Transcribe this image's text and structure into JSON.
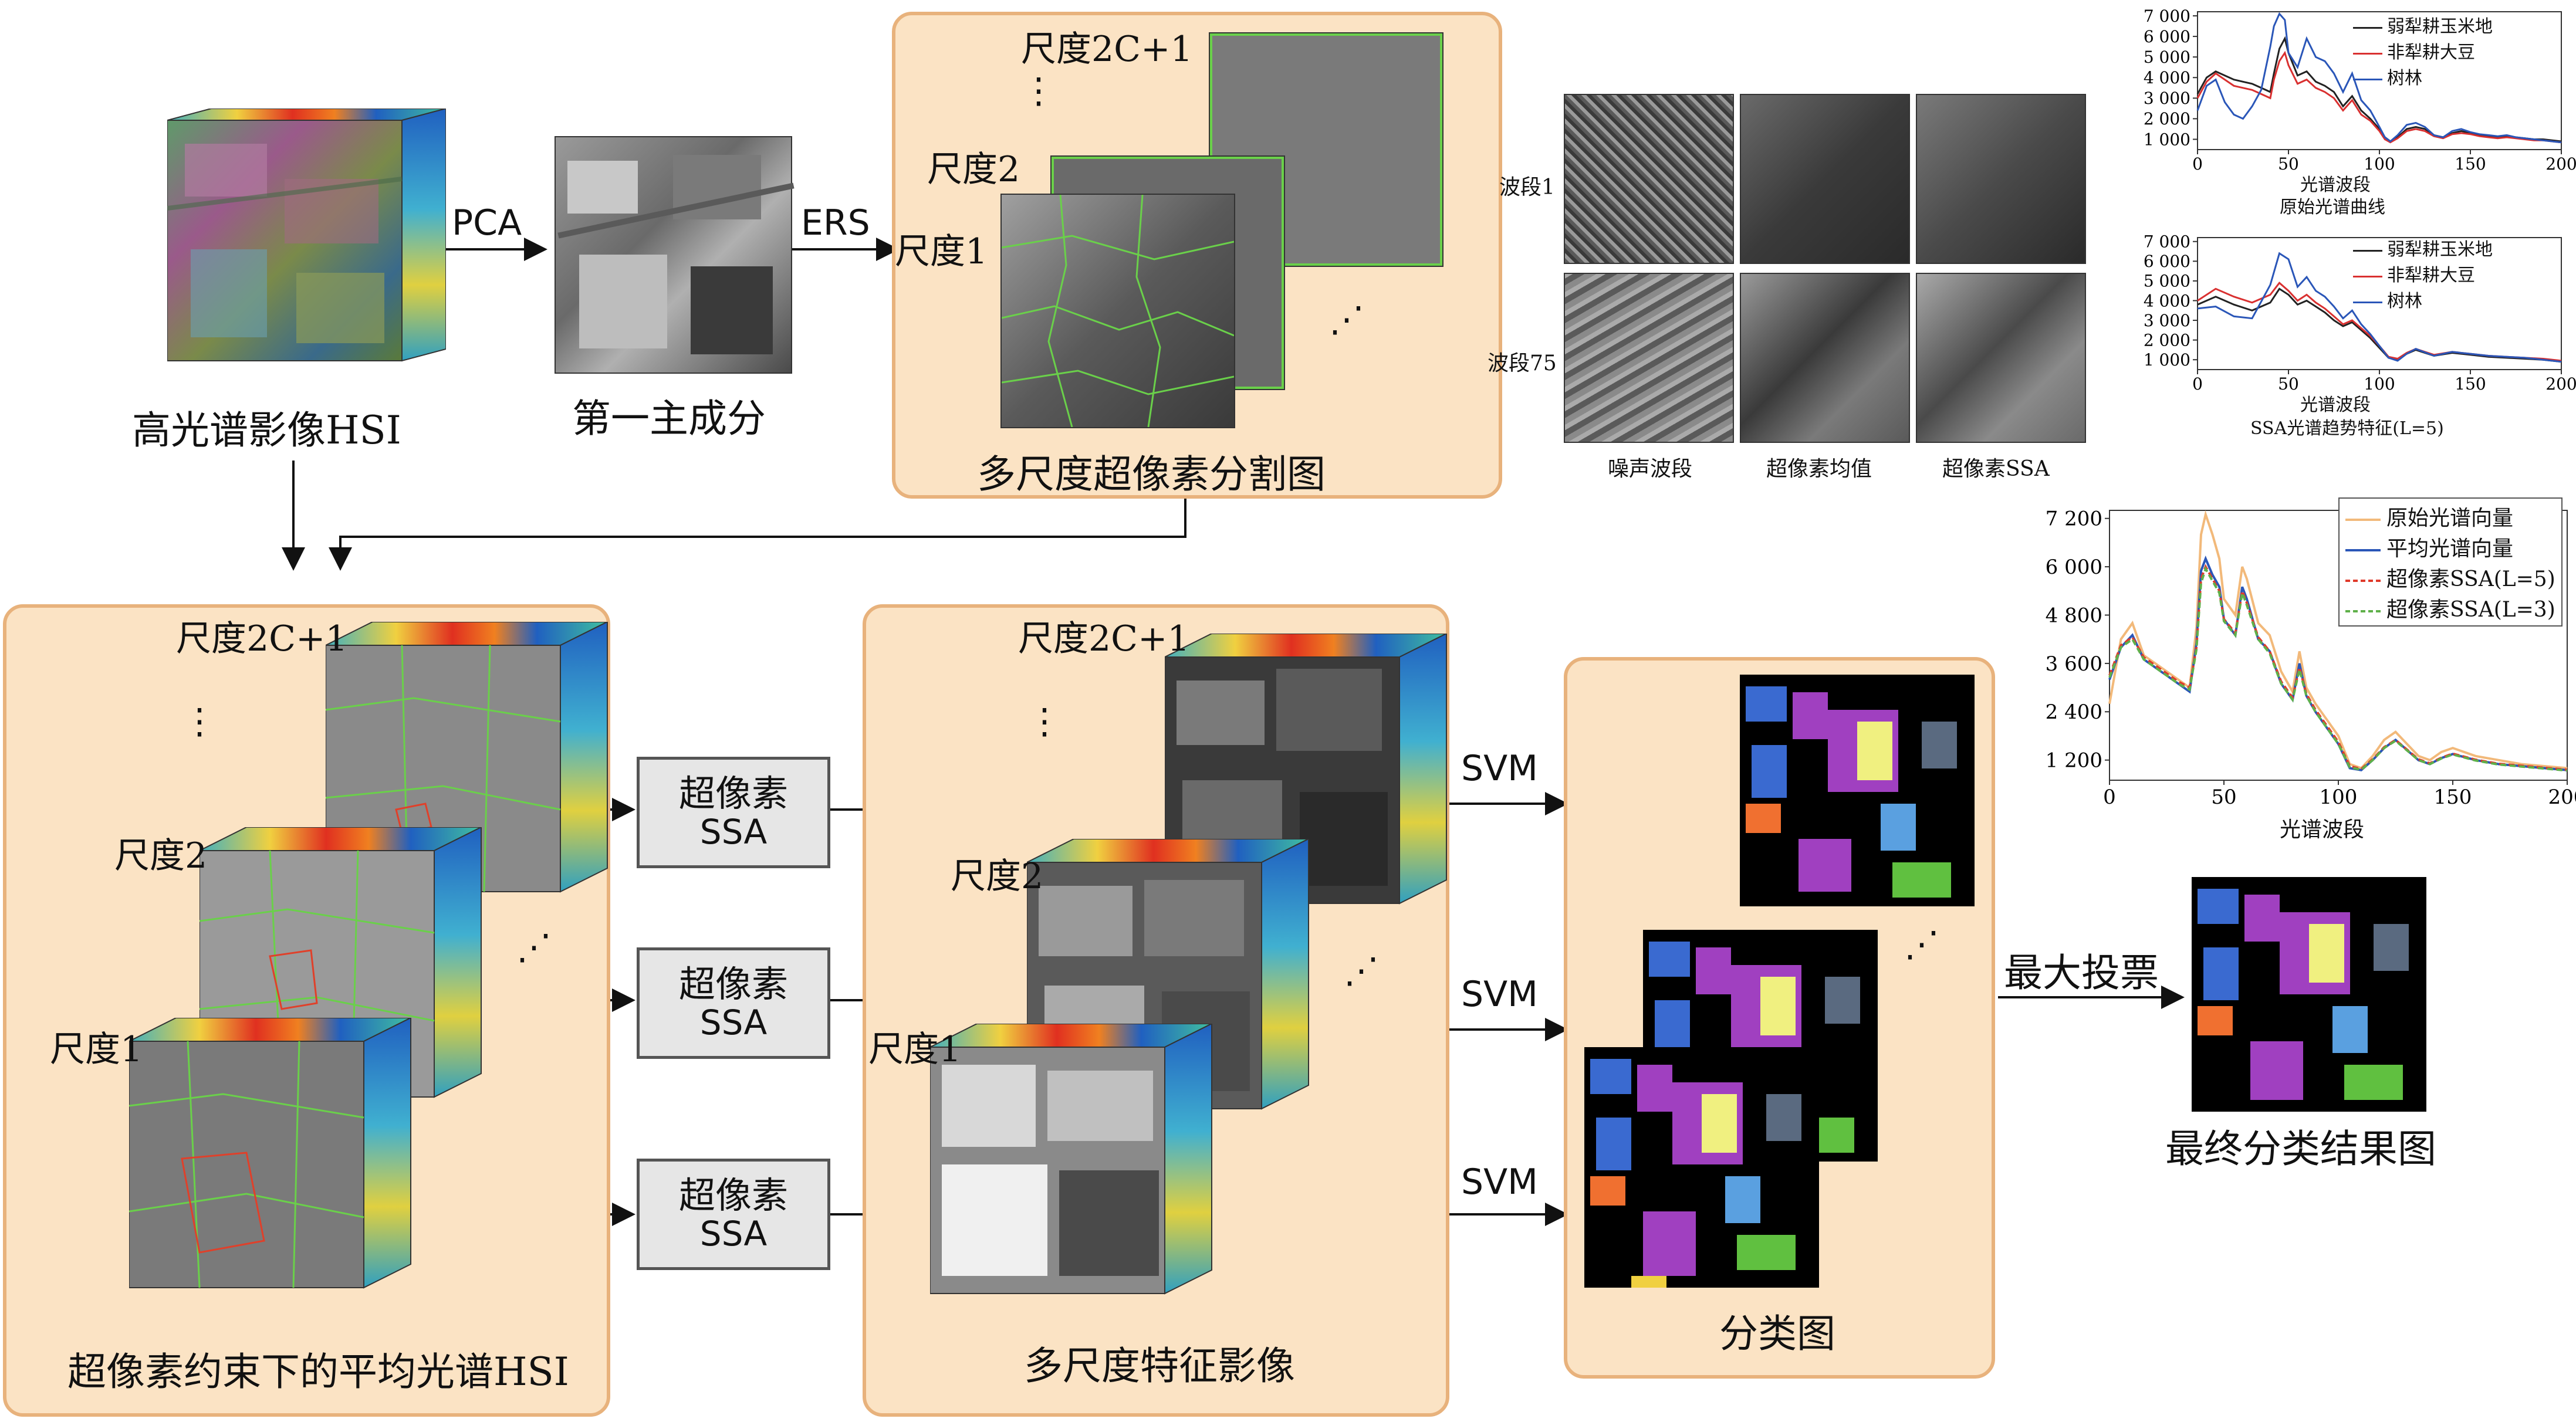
{
  "top_row": {
    "hsi_label": "高光谱影像HSI",
    "pca_label": "PCA",
    "pc1_label": "第一主成分",
    "ers_label": "ERS",
    "seg_panel": {
      "label": "多尺度超像素分割图",
      "scale_top": "尺度2C+1",
      "scale_mid": "尺度2",
      "scale_bot": "尺度1",
      "ellipsis": "⋮",
      "ellipsis_diag": "⋰"
    }
  },
  "band_grid": {
    "row_labels": [
      "波段1",
      "波段75"
    ],
    "col_labels": [
      "噪声波段",
      "超像素均值",
      "超像素SSA"
    ]
  },
  "chart_raw": {
    "xlabel": "光谱波段",
    "caption": "原始光谱曲线",
    "legend": [
      "弱犁耕玉米地",
      "非犁耕大豆",
      "树林"
    ]
  },
  "chart_ssa": {
    "xlabel": "光谱波段",
    "caption": "SSA光谱趋势特征(L=5)",
    "legend": [
      "弱犁耕玉米地",
      "非犁耕大豆",
      "树林"
    ]
  },
  "chart_compare": {
    "xlabel": "光谱波段",
    "legend": [
      "原始光谱向量",
      "平均光谱向量",
      "超像素SSA(L=5)",
      "超像素SSA(L=3)"
    ]
  },
  "bottom_row": {
    "mean_panel": {
      "label": "超像素约束下的平均光谱HSI",
      "scale_top": "尺度2C+1",
      "scale_mid": "尺度2",
      "scale_bot": "尺度1",
      "ellipsis": "⋮",
      "ellipsis_diag": "⋰"
    },
    "ssa_box": {
      "line1": "超像素",
      "line2": "SSA"
    },
    "feature_panel": {
      "label": "多尺度特征影像",
      "scale_top": "尺度2C+1",
      "scale_mid": "尺度2",
      "scale_bot": "尺度1",
      "ellipsis": "⋮",
      "ellipsis_diag": "⋰"
    },
    "svm_label": "SVM",
    "class_panel": {
      "label": "分类图",
      "ellipsis_diag": "⋰"
    },
    "vote_label": "最大投票",
    "final_label": "最终分类结果图"
  },
  "chart_data": [
    {
      "type": "line",
      "x_ticks": [
        0,
        50,
        100,
        150,
        200
      ],
      "y_ticks": [
        "1 000",
        "2 000",
        "3 000",
        "4 000",
        "5 000",
        "6 000",
        "7 000"
      ],
      "xlim": [
        0,
        200
      ],
      "ylim": [
        500,
        7200
      ],
      "xlabel": "光谱波段",
      "series": [
        {
          "name": "弱犁耕玉米地",
          "color": "#222222",
          "x": [
            0,
            5,
            10,
            15,
            20,
            25,
            30,
            35,
            40,
            42,
            45,
            48,
            50,
            55,
            60,
            65,
            70,
            75,
            80,
            85,
            90,
            95,
            100,
            103,
            106,
            110,
            115,
            120,
            125,
            130,
            135,
            140,
            145,
            150,
            155,
            160,
            165,
            170,
            175,
            180,
            185,
            190,
            195,
            200
          ],
          "y": [
            3200,
            4000,
            4300,
            4100,
            3900,
            3800,
            3700,
            3500,
            3300,
            4200,
            5400,
            5900,
            5200,
            4100,
            4300,
            3800,
            3600,
            3300,
            2600,
            3100,
            2400,
            2000,
            1500,
            1100,
            900,
            1100,
            1500,
            1600,
            1500,
            1200,
            1100,
            1300,
            1400,
            1300,
            1200,
            1150,
            1100,
            1150,
            1100,
            1050,
            1000,
            1000,
            950,
            900
          ]
        },
        {
          "name": "非犁耕大豆",
          "color": "#d93030",
          "x": [
            0,
            5,
            10,
            15,
            20,
            25,
            30,
            35,
            40,
            42,
            45,
            48,
            50,
            55,
            60,
            65,
            70,
            75,
            80,
            85,
            90,
            95,
            100,
            103,
            106,
            110,
            115,
            120,
            125,
            130,
            135,
            140,
            145,
            150,
            155,
            160,
            165,
            170,
            175,
            180,
            185,
            190,
            195,
            200
          ],
          "y": [
            3000,
            3800,
            4200,
            3900,
            3600,
            3500,
            3400,
            3200,
            3000,
            3900,
            4800,
            5200,
            4600,
            3700,
            3900,
            3500,
            3300,
            3000,
            2400,
            2900,
            2200,
            1900,
            1400,
            1000,
            850,
            1050,
            1400,
            1500,
            1400,
            1150,
            1050,
            1250,
            1300,
            1250,
            1150,
            1100,
            1050,
            1100,
            1050,
            1000,
            950,
            950,
            900,
            850
          ]
        },
        {
          "name": "树林",
          "color": "#2a56b8",
          "x": [
            0,
            5,
            10,
            15,
            20,
            25,
            30,
            35,
            40,
            42,
            45,
            48,
            50,
            55,
            60,
            65,
            70,
            75,
            80,
            85,
            90,
            95,
            100,
            103,
            106,
            110,
            115,
            120,
            125,
            130,
            135,
            140,
            145,
            150,
            155,
            160,
            165,
            170,
            175,
            180,
            185,
            190,
            195,
            200
          ],
          "y": [
            2400,
            3600,
            3900,
            2800,
            2200,
            2000,
            2600,
            3400,
            5500,
            6500,
            7100,
            6800,
            5200,
            4500,
            5900,
            5000,
            4800,
            4200,
            3300,
            4200,
            2900,
            2400,
            1600,
            1100,
            900,
            1200,
            1700,
            1800,
            1600,
            1200,
            1100,
            1400,
            1500,
            1350,
            1250,
            1200,
            1150,
            1200,
            1100,
            1050,
            1000,
            950,
            900,
            850
          ]
        }
      ]
    },
    {
      "type": "line",
      "x_ticks": [
        0,
        50,
        100,
        150,
        200
      ],
      "y_ticks": [
        "1 000",
        "2 000",
        "3 000",
        "4 000",
        "5 000",
        "6 000",
        "7 000"
      ],
      "xlim": [
        0,
        200
      ],
      "ylim": [
        500,
        7200
      ],
      "xlabel": "光谱波段",
      "series": [
        {
          "name": "弱犁耕玉米地",
          "color": "#222222",
          "x": [
            0,
            10,
            20,
            30,
            40,
            45,
            50,
            55,
            60,
            65,
            70,
            75,
            80,
            85,
            90,
            95,
            100,
            105,
            110,
            115,
            120,
            130,
            140,
            150,
            160,
            170,
            180,
            190,
            200
          ],
          "y": [
            3800,
            4200,
            3800,
            3500,
            3900,
            4600,
            4300,
            3800,
            4000,
            3700,
            3400,
            3000,
            2700,
            2900,
            2500,
            2100,
            1600,
            1100,
            1000,
            1300,
            1500,
            1200,
            1350,
            1250,
            1150,
            1100,
            1050,
            1000,
            900
          ]
        },
        {
          "name": "非犁耕大豆",
          "color": "#d93030",
          "x": [
            0,
            10,
            20,
            30,
            40,
            45,
            50,
            55,
            60,
            65,
            70,
            75,
            80,
            85,
            90,
            95,
            100,
            105,
            110,
            115,
            120,
            130,
            140,
            150,
            160,
            170,
            180,
            190,
            200
          ],
          "y": [
            4000,
            4600,
            4200,
            3900,
            4300,
            4900,
            4500,
            4000,
            4300,
            3900,
            3600,
            3200,
            2800,
            3000,
            2600,
            2200,
            1700,
            1150,
            1050,
            1350,
            1550,
            1250,
            1400,
            1300,
            1200,
            1150,
            1100,
            1050,
            950
          ]
        },
        {
          "name": "树林",
          "color": "#2a56b8",
          "x": [
            0,
            10,
            20,
            30,
            40,
            45,
            50,
            55,
            60,
            65,
            70,
            75,
            80,
            85,
            90,
            95,
            100,
            105,
            110,
            115,
            120,
            130,
            140,
            150,
            160,
            170,
            180,
            190,
            200
          ],
          "y": [
            3600,
            3700,
            3200,
            3100,
            4800,
            6400,
            6100,
            4700,
            5200,
            4500,
            4200,
            3700,
            3100,
            3500,
            2800,
            2300,
            1700,
            1100,
            950,
            1300,
            1550,
            1200,
            1400,
            1300,
            1200,
            1150,
            1100,
            1000,
            900
          ]
        }
      ]
    },
    {
      "type": "line",
      "x_ticks": [
        0,
        50,
        100,
        150,
        200
      ],
      "y_ticks": [
        "1 200",
        "2 400",
        "3 600",
        "4 800",
        "6 000",
        "7 200"
      ],
      "xlim": [
        0,
        200
      ],
      "ylim": [
        700,
        7400
      ],
      "xlabel": "光谱波段",
      "series": [
        {
          "name": "原始光谱向量",
          "color": "#f2b97a",
          "x": [
            0,
            5,
            10,
            15,
            20,
            25,
            30,
            35,
            38,
            40,
            42,
            45,
            48,
            50,
            55,
            58,
            60,
            65,
            70,
            75,
            80,
            83,
            86,
            90,
            95,
            100,
            105,
            110,
            115,
            120,
            125,
            130,
            135,
            140,
            145,
            150,
            160,
            170,
            180,
            190,
            200
          ],
          "y": [
            2600,
            4200,
            4600,
            3800,
            3600,
            3400,
            3200,
            3000,
            4500,
            6800,
            7300,
            6800,
            6200,
            5200,
            4800,
            6000,
            5700,
            4600,
            4300,
            3400,
            2900,
            3900,
            3000,
            2600,
            2200,
            1800,
            1100,
            1000,
            1300,
            1700,
            1900,
            1600,
            1300,
            1200,
            1400,
            1500,
            1300,
            1200,
            1100,
            1050,
            1000
          ]
        },
        {
          "name": "平均光谱向量",
          "color": "#2a56b8",
          "x": [
            0,
            5,
            10,
            15,
            20,
            25,
            30,
            35,
            38,
            40,
            42,
            45,
            48,
            50,
            55,
            58,
            60,
            65,
            70,
            75,
            80,
            83,
            86,
            90,
            95,
            100,
            105,
            110,
            115,
            120,
            125,
            130,
            135,
            140,
            145,
            150,
            160,
            170,
            180,
            190,
            200
          ],
          "y": [
            3200,
            4000,
            4300,
            3700,
            3500,
            3300,
            3100,
            2900,
            4100,
            5900,
            6200,
            5800,
            5500,
            4700,
            4300,
            5500,
            5200,
            4200,
            3900,
            3100,
            2700,
            3600,
            2800,
            2400,
            2000,
            1600,
            1000,
            950,
            1200,
            1500,
            1700,
            1450,
            1200,
            1100,
            1250,
            1350,
            1200,
            1100,
            1050,
            1000,
            950
          ]
        },
        {
          "name": "超像素SSA(L=5)",
          "color": "#e03a2a",
          "x": [
            0,
            5,
            10,
            15,
            20,
            25,
            30,
            35,
            38,
            40,
            42,
            45,
            48,
            50,
            55,
            58,
            60,
            65,
            70,
            75,
            80,
            83,
            86,
            90,
            95,
            100,
            105,
            110,
            115,
            120,
            125,
            130,
            135,
            140,
            145,
            150,
            160,
            170,
            180,
            190,
            200
          ],
          "y": [
            3300,
            4050,
            4250,
            3750,
            3550,
            3350,
            3150,
            3000,
            4000,
            5700,
            6000,
            5700,
            5400,
            4700,
            4350,
            5400,
            5100,
            4250,
            3900,
            3150,
            2750,
            3500,
            2850,
            2450,
            2050,
            1650,
            1050,
            980,
            1220,
            1520,
            1700,
            1460,
            1220,
            1120,
            1260,
            1360,
            1210,
            1110,
            1060,
            1010,
            960
          ]
        },
        {
          "name": "超像素SSA(L=3)",
          "color": "#5fb04a",
          "x": [
            0,
            5,
            10,
            15,
            20,
            25,
            30,
            35,
            38,
            40,
            42,
            45,
            48,
            50,
            55,
            58,
            60,
            65,
            70,
            75,
            80,
            83,
            86,
            90,
            95,
            100,
            105,
            110,
            115,
            120,
            125,
            130,
            135,
            140,
            145,
            150,
            160,
            170,
            180,
            190,
            200
          ],
          "y": [
            3250,
            4000,
            4200,
            3700,
            3500,
            3300,
            3100,
            2950,
            3950,
            5600,
            5950,
            5650,
            5350,
            4650,
            4300,
            5350,
            5050,
            4200,
            3850,
            3100,
            2700,
            3450,
            2800,
            2400,
            2000,
            1600,
            1020,
            960,
            1200,
            1500,
            1680,
            1440,
            1200,
            1100,
            1240,
            1340,
            1190,
            1090,
            1040,
            990,
            940
          ]
        }
      ]
    }
  ]
}
